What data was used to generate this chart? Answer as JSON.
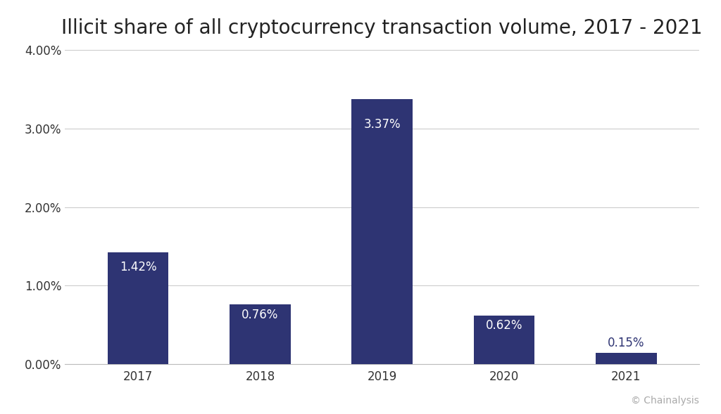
{
  "title": "Illicit share of all cryptocurrency transaction volume, 2017 - 2021",
  "categories": [
    "2017",
    "2018",
    "2019",
    "2020",
    "2021"
  ],
  "values": [
    1.42,
    0.76,
    3.37,
    0.62,
    0.15
  ],
  "bar_color": "#2e3473",
  "label_color_inside": "#ffffff",
  "label_color_outside": "#2e3473",
  "label_outside_threshold": 0.5,
  "ylim": [
    0,
    4.0
  ],
  "yticks": [
    0.0,
    1.0,
    2.0,
    3.0,
    4.0
  ],
  "ytick_labels": [
    "0.00%",
    "1.00%",
    "2.00%",
    "3.00%",
    "4.00%"
  ],
  "background_color": "#ffffff",
  "grid_color": "#cccccc",
  "title_fontsize": 20,
  "tick_fontsize": 12,
  "label_fontsize": 12,
  "bar_width": 0.5,
  "source_text": "© Chainalysis",
  "source_fontsize": 10,
  "source_color": "#aaaaaa"
}
